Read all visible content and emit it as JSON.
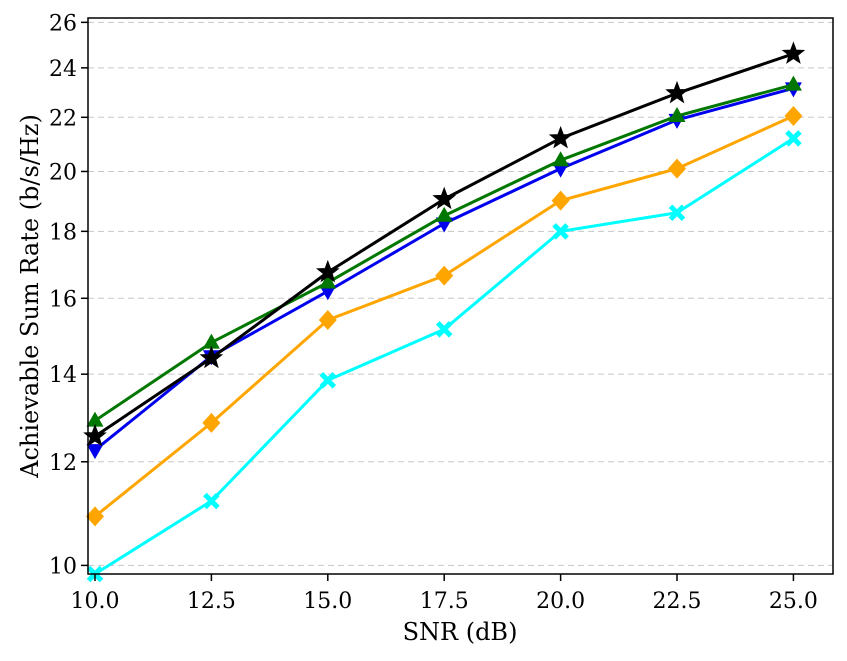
{
  "chart_data": {
    "type": "line",
    "title": "",
    "xlabel": "SNR (dB)",
    "ylabel": "Achievable Sum Rate (b/s/Hz)",
    "x": [
      10.0,
      12.5,
      15.0,
      17.5,
      20.0,
      22.5,
      25.0
    ],
    "xticks": [
      "10.0",
      "12.5",
      "15.0",
      "17.5",
      "20.0",
      "22.5",
      "25.0"
    ],
    "xlim": [
      9.85,
      25.85
    ],
    "yscale": "log",
    "ylim": [
      9.85,
      26.2
    ],
    "yticks": [
      10,
      12,
      14,
      16,
      18,
      20,
      22,
      24,
      26
    ],
    "ytick_labels": [
      "10",
      "12",
      "14",
      "16",
      "18",
      "20",
      "22",
      "24",
      "26"
    ],
    "grid": "horizontal-dashed",
    "series": [
      {
        "name": "black-star",
        "color": "#000000",
        "marker": "star",
        "values": [
          12.55,
          14.4,
          16.75,
          19.05,
          21.2,
          22.95,
          24.6
        ]
      },
      {
        "name": "green-triangle-up",
        "color": "#007700",
        "marker": "triangle-up",
        "values": [
          12.9,
          14.8,
          16.45,
          18.5,
          20.4,
          22.05,
          23.3
        ]
      },
      {
        "name": "blue-triangle-down",
        "color": "#0000ee",
        "marker": "triangle-down",
        "values": [
          12.25,
          14.45,
          16.2,
          18.25,
          20.1,
          21.9,
          23.15
        ]
      },
      {
        "name": "orange-diamond",
        "color": "#ffa500",
        "marker": "diamond",
        "values": [
          10.9,
          12.85,
          15.4,
          16.65,
          19.0,
          20.1,
          22.05
        ]
      },
      {
        "name": "cyan-x",
        "color": "#00ffff",
        "marker": "x",
        "values": [
          9.85,
          11.2,
          13.85,
          15.15,
          18.0,
          18.6,
          21.2
        ]
      }
    ]
  }
}
